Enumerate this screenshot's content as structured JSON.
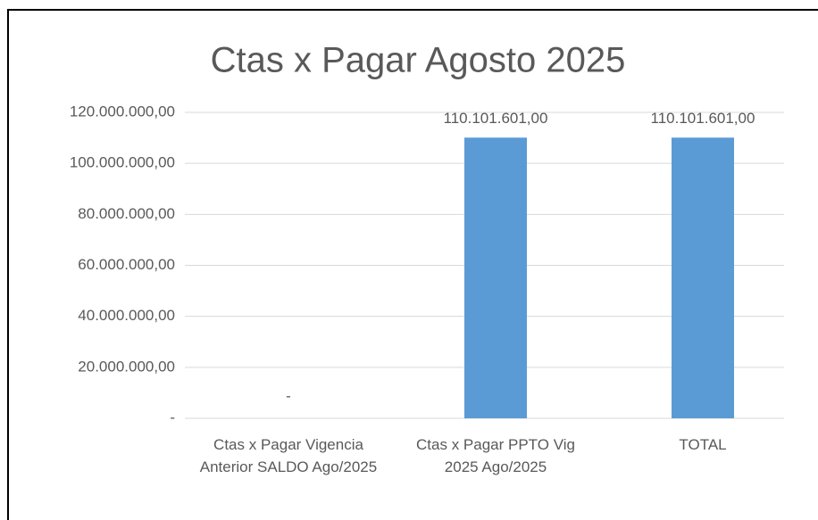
{
  "chart_data": {
    "type": "bar",
    "title": "Ctas x Pagar Agosto 2025",
    "categories": [
      "Ctas x Pagar Vigencia Anterior SALDO Ago/2025",
      "Ctas x Pagar PPTO Vig 2025 Ago/2025",
      "TOTAL"
    ],
    "values": [
      0,
      110101601,
      110101601
    ],
    "value_labels": [
      "-",
      "110.101.601,00",
      "110.101.601,00"
    ],
    "color": "#5b9bd5",
    "ylim": [
      0,
      120000000
    ],
    "yticks": [
      {
        "value": 0,
        "label": "-"
      },
      {
        "value": 20000000,
        "label": "20.000.000,00"
      },
      {
        "value": 40000000,
        "label": "40.000.000,00"
      },
      {
        "value": 60000000,
        "label": "60.000.000,00"
      },
      {
        "value": 80000000,
        "label": "80.000.000,00"
      },
      {
        "value": 100000000,
        "label": "100.000.000,00"
      },
      {
        "value": 120000000,
        "label": "120.000.000,00"
      }
    ],
    "grid": true
  }
}
